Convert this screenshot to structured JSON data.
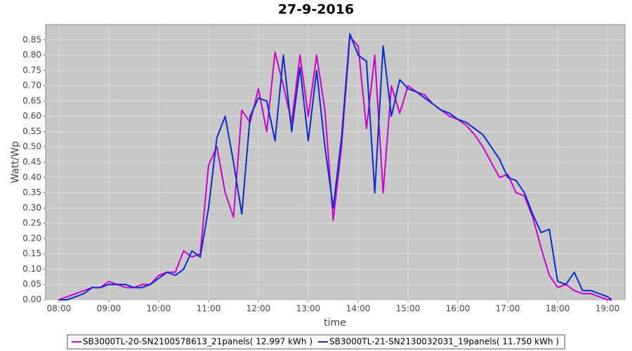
{
  "chart_data": {
    "type": "line",
    "title": "27-9-2016",
    "x_label": "time",
    "y_label": "Watt/Wp",
    "x": [
      "08:00",
      "08:10",
      "08:20",
      "08:30",
      "08:40",
      "08:50",
      "09:00",
      "09:10",
      "09:20",
      "09:30",
      "09:40",
      "09:50",
      "10:00",
      "10:10",
      "10:20",
      "10:30",
      "10:40",
      "10:50",
      "11:00",
      "11:10",
      "11:20",
      "11:30",
      "11:40",
      "11:50",
      "12:00",
      "12:10",
      "12:20",
      "12:30",
      "12:40",
      "12:50",
      "13:00",
      "13:10",
      "13:20",
      "13:30",
      "13:40",
      "13:50",
      "14:00",
      "14:10",
      "14:20",
      "14:30",
      "14:40",
      "14:50",
      "15:00",
      "15:10",
      "15:20",
      "15:30",
      "15:40",
      "15:50",
      "16:00",
      "16:10",
      "16:20",
      "16:30",
      "16:40",
      "16:50",
      "17:00",
      "17:10",
      "17:20",
      "17:30",
      "17:40",
      "17:50",
      "18:00",
      "18:10",
      "18:20",
      "18:30",
      "18:40",
      "18:50",
      "19:00",
      "19:05"
    ],
    "series": [
      {
        "name": "SB3000TL-20-SN2100578613_21panels( 12.997 kWh )",
        "color": "#cc00cc",
        "values": [
          0.0,
          0.01,
          0.02,
          0.03,
          0.04,
          0.04,
          0.06,
          0.05,
          0.04,
          0.04,
          0.05,
          0.05,
          0.08,
          0.09,
          0.09,
          0.16,
          0.14,
          0.15,
          0.44,
          0.5,
          0.35,
          0.27,
          0.62,
          0.58,
          0.69,
          0.55,
          0.81,
          0.7,
          0.58,
          0.8,
          0.6,
          0.8,
          0.62,
          0.26,
          0.5,
          0.86,
          0.83,
          0.56,
          0.8,
          0.35,
          0.7,
          0.61,
          0.7,
          0.68,
          0.67,
          0.64,
          0.62,
          0.6,
          0.59,
          0.57,
          0.54,
          0.5,
          0.45,
          0.4,
          0.41,
          0.35,
          0.34,
          0.27,
          0.17,
          0.08,
          0.04,
          0.05,
          0.03,
          0.02,
          0.02,
          0.01,
          0.0,
          0.0
        ]
      },
      {
        "name": "SB3000TL-21-SN2130032031_19panels( 11.750 kWh )",
        "color": "#0a2ccc",
        "values": [
          0.0,
          0.0,
          0.01,
          0.02,
          0.04,
          0.04,
          0.05,
          0.05,
          0.05,
          0.04,
          0.04,
          0.05,
          0.07,
          0.09,
          0.08,
          0.1,
          0.16,
          0.14,
          0.3,
          0.53,
          0.6,
          0.45,
          0.28,
          0.6,
          0.66,
          0.65,
          0.52,
          0.8,
          0.55,
          0.76,
          0.52,
          0.75,
          0.5,
          0.3,
          0.53,
          0.87,
          0.8,
          0.78,
          0.35,
          0.83,
          0.6,
          0.72,
          0.69,
          0.68,
          0.66,
          0.64,
          0.62,
          0.61,
          0.59,
          0.58,
          0.56,
          0.54,
          0.5,
          0.46,
          0.4,
          0.39,
          0.35,
          0.28,
          0.22,
          0.23,
          0.06,
          0.05,
          0.09,
          0.03,
          0.03,
          0.02,
          0.01,
          0.0
        ]
      }
    ],
    "xlim": [
      "07:44",
      "19:21"
    ],
    "xticks": [
      "08:00",
      "09:00",
      "10:00",
      "11:00",
      "12:00",
      "13:00",
      "14:00",
      "15:00",
      "16:00",
      "17:00",
      "18:00",
      "19:00"
    ],
    "ylim": [
      0,
      0.9
    ],
    "yticks": [
      {
        "value": 0,
        "label": "0.00"
      },
      0.05,
      {
        "value": 0.1,
        "label": "0.10"
      },
      0.15,
      {
        "value": 0.2,
        "label": "0.20"
      },
      0.25,
      {
        "value": 0.3,
        "label": "0.30"
      },
      0.35,
      {
        "value": 0.4,
        "label": "0.40"
      },
      0.45,
      {
        "value": 0.5,
        "label": "0.50"
      },
      0.55,
      {
        "value": 0.6,
        "label": "0.60"
      },
      0.65,
      {
        "value": 0.7,
        "label": "0.70"
      },
      0.75,
      {
        "value": 0.8,
        "label": "0.80"
      },
      0.85
    ],
    "grid": true,
    "plot_background": "#c8c8c8",
    "legend": "bottom"
  }
}
